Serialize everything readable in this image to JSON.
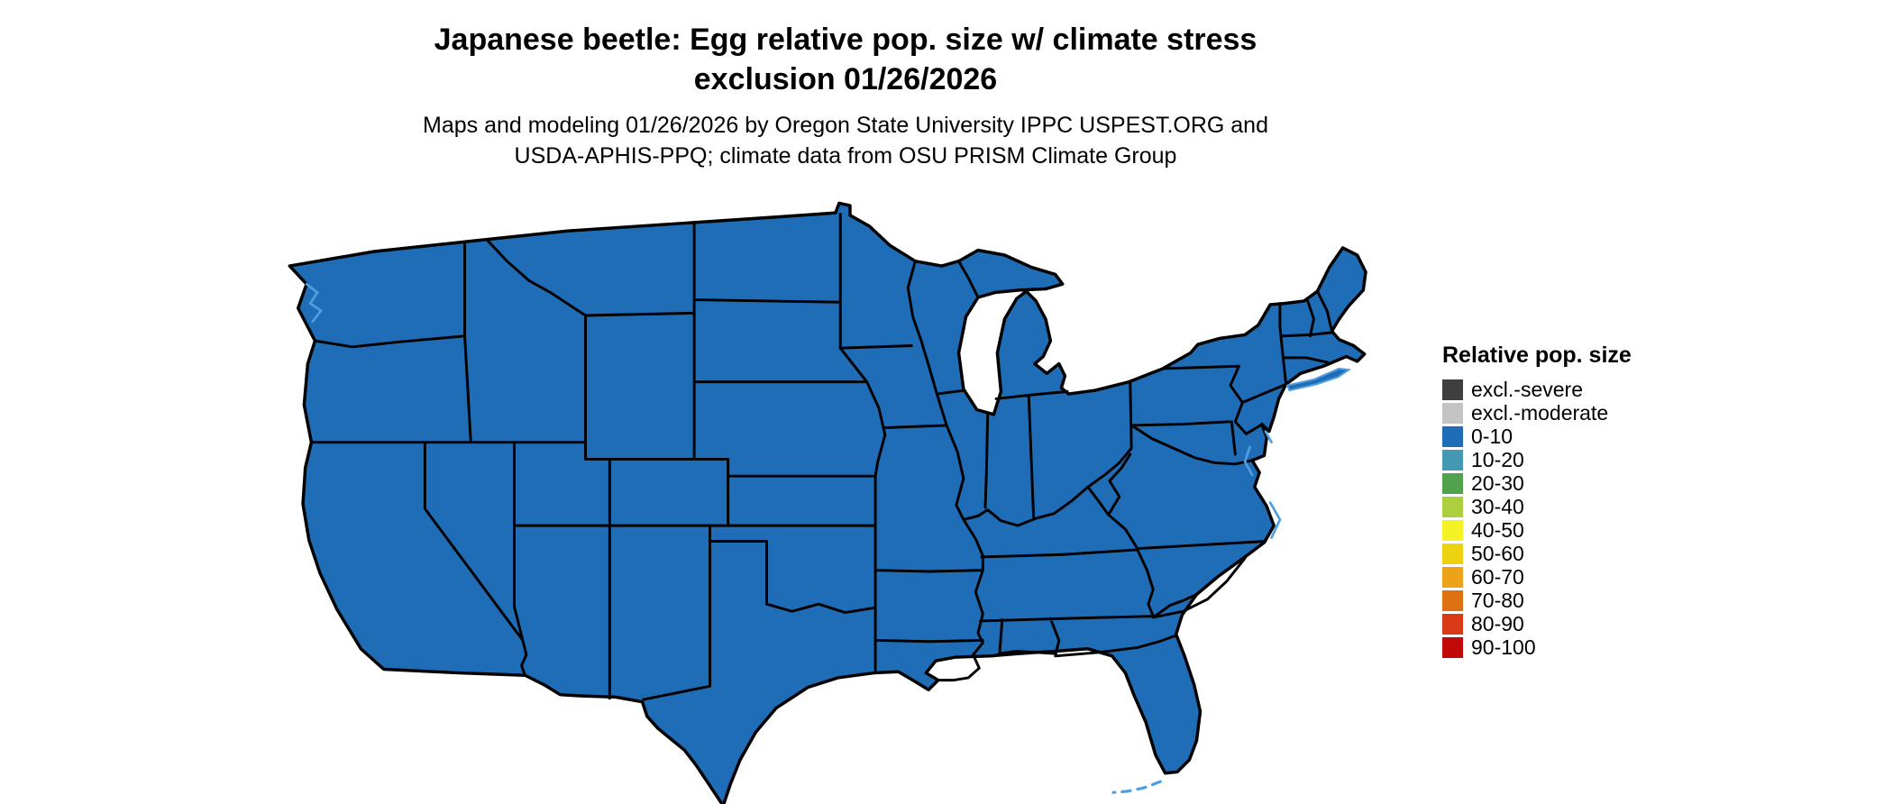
{
  "title": {
    "line1": "Japanese beetle: Egg relative pop. size w/ climate stress",
    "line2": "exclusion 01/26/2026"
  },
  "subtitle": {
    "line1": "Maps and modeling 01/26/2026 by Oregon State University IPPC USPEST.ORG and",
    "line2": "USDA-APHIS-PPQ; climate data from OSU PRISM Climate Group"
  },
  "legend": {
    "title": "Relative pop. size",
    "items": [
      {
        "label": "excl.-severe",
        "color": "#3f3f3f"
      },
      {
        "label": "excl.-moderate",
        "color": "#c4c4c4"
      },
      {
        "label": "0-10",
        "color": "#1f6db6"
      },
      {
        "label": "10-20",
        "color": "#4598b2"
      },
      {
        "label": "20-30",
        "color": "#52a14c"
      },
      {
        "label": "30-40",
        "color": "#accf3e"
      },
      {
        "label": "40-50",
        "color": "#f4f127"
      },
      {
        "label": "50-60",
        "color": "#edd211"
      },
      {
        "label": "60-70",
        "color": "#eca31a"
      },
      {
        "label": "70-80",
        "color": "#de7112"
      },
      {
        "label": "80-90",
        "color": "#d93a17"
      },
      {
        "label": "90-100",
        "color": "#c00a0a"
      }
    ]
  },
  "map": {
    "description": "Contiguous United States choropleth; all states shown in the 0-10 relative population size class",
    "colors": {
      "state_fill": "#1f6db6",
      "state_border": "#000000",
      "water": "#4d9ee3"
    }
  }
}
